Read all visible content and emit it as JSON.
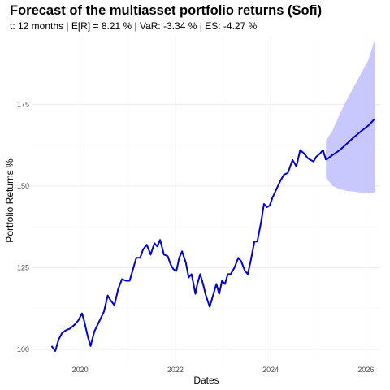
{
  "chart_data": {
    "type": "line",
    "title": "Forecast of the multiasset portfolio returns (Sofi)",
    "subtitle": "t: 12 months | E[R] = 8.21 % | VaR: -3.34 % | ES: -4.27 %",
    "xlabel": "Dates",
    "ylabel": "Portfolio Returns %",
    "xlim": [
      2019.0,
      2026.3
    ],
    "ylim": [
      95,
      196
    ],
    "x_ticks": [
      2020,
      2022,
      2024,
      2026
    ],
    "x_tick_labels": [
      "2020",
      "2022",
      "2024",
      "2026"
    ],
    "y_ticks": [
      100,
      125,
      150,
      175
    ],
    "y_tick_labels": [
      "100",
      "125",
      "150",
      "175"
    ],
    "grid": true,
    "legend": "none",
    "colors": {
      "history": "#0000cd",
      "forecast_band": "#c8c8ff",
      "grid": "#ebebeb"
    },
    "series": [
      {
        "x": [
          2019.4,
          2019.48,
          2019.55,
          2019.62,
          2019.7,
          2019.78,
          2019.88,
          2019.96,
          2020.04,
          2020.08,
          2020.16,
          2020.22,
          2020.3,
          2020.4,
          2020.5,
          2020.58,
          2020.64,
          2020.72,
          2020.8,
          2020.88,
          2020.96,
          2021.04,
          2021.1,
          2021.18,
          2021.26,
          2021.32,
          2021.4,
          2021.48,
          2021.56,
          2021.62,
          2021.68,
          2021.76,
          2021.84,
          2021.9,
          2021.96,
          2022.02,
          2022.08,
          2022.14,
          2022.22,
          2022.28,
          2022.34,
          2022.42,
          2022.46,
          2022.52,
          2022.58,
          2022.64,
          2022.72,
          2022.78,
          2022.86,
          2022.92,
          2022.98,
          2023.04,
          2023.1,
          2023.16,
          2023.24,
          2023.32,
          2023.38,
          2023.46,
          2023.52,
          2023.58,
          2023.66,
          2023.72,
          2023.8,
          2023.86,
          2023.92,
          2023.98,
          2024.04,
          2024.12,
          2024.2,
          2024.28,
          2024.36,
          2024.46,
          2024.54,
          2024.62,
          2024.7,
          2024.78,
          2024.84,
          2024.9,
          2024.96,
          2025.04,
          2025.1,
          2025.16
        ],
        "values": [
          101.0,
          99.5,
          103.0,
          105.0,
          105.8,
          106.3,
          107.5,
          108.8,
          111.0,
          109.0,
          104.0,
          101.0,
          105.5,
          108.5,
          111.5,
          116.5,
          115.0,
          113.5,
          118.5,
          121.5,
          121.0,
          121.0,
          124.0,
          128.0,
          128.0,
          130.5,
          132.0,
          129.0,
          132.5,
          131.5,
          133.5,
          129.0,
          128.5,
          126.0,
          124.5,
          124.0,
          128.0,
          130.0,
          126.5,
          122.0,
          123.0,
          117.0,
          120.0,
          123.0,
          120.0,
          116.5,
          113.0,
          116.0,
          120.0,
          117.0,
          121.0,
          120.0,
          123.0,
          123.0,
          125.0,
          128.0,
          127.0,
          124.0,
          123.0,
          127.0,
          133.0,
          133.0,
          139.0,
          144.5,
          143.5,
          144.0,
          146.5,
          149.0,
          151.5,
          153.5,
          154.0,
          158.0,
          156.0,
          161.0,
          160.0,
          158.5,
          158.0,
          157.5,
          159.0,
          160.0,
          161.0,
          158.0
        ]
      },
      {
        "x": [
          2025.16,
          2025.3,
          2025.45,
          2025.6,
          2025.75,
          2025.9,
          2026.05,
          2026.18
        ],
        "values": [
          158.0,
          159.5,
          161.0,
          163.0,
          165.0,
          166.8,
          168.5,
          170.5
        ],
        "band_upper": [
          164.0,
          167.0,
          172.0,
          176.5,
          180.5,
          184.5,
          188.5,
          194.5
        ],
        "band_lower": [
          152.5,
          150.0,
          149.0,
          148.5,
          148.3,
          148.0,
          148.0,
          148.0
        ]
      }
    ]
  }
}
